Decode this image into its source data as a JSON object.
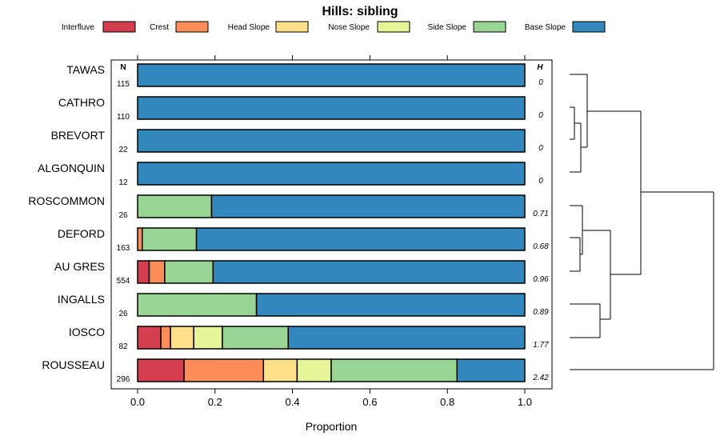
{
  "chart_data": {
    "type": "bar",
    "orientation": "horizontal",
    "stacked": true,
    "title": "Hills: sibling",
    "xlabel": "Proportion",
    "ylabel": "",
    "xlim": [
      0,
      1
    ],
    "xticks": [
      "0.0",
      "0.2",
      "0.4",
      "0.6",
      "0.8",
      "1.0"
    ],
    "n_header": "N",
    "h_header": "H",
    "categories": [
      "TAWAS",
      "CATHRO",
      "BREVORT",
      "ALGONQUIN",
      "ROSCOMMON",
      "DEFORD",
      "AU GRES",
      "INGALLS",
      "IOSCO",
      "ROUSSEAU"
    ],
    "n": [
      "115",
      "110",
      "22",
      "12",
      "26",
      "163",
      "554",
      "26",
      "82",
      "296"
    ],
    "h": [
      "0",
      "0",
      "0",
      "0",
      "0.71",
      "0.68",
      "0.96",
      "0.89",
      "1.77",
      "2.42"
    ],
    "series": [
      {
        "name": "Interfluve",
        "color": "#d53e4f",
        "values": [
          0,
          0,
          0,
          0,
          0,
          0,
          0.03,
          0,
          0.06,
          0.12
        ]
      },
      {
        "name": "Crest",
        "color": "#fc8d59",
        "values": [
          0,
          0,
          0,
          0,
          0,
          0.012,
          0.04,
          0,
          0.025,
          0.205
        ]
      },
      {
        "name": "Head Slope",
        "color": "#fee08b",
        "values": [
          0,
          0,
          0,
          0,
          0,
          0,
          0,
          0,
          0.06,
          0.087
        ]
      },
      {
        "name": "Nose Slope",
        "color": "#e6f598",
        "values": [
          0,
          0,
          0,
          0,
          0,
          0,
          0,
          0,
          0.074,
          0.088
        ]
      },
      {
        "name": "Side Slope",
        "color": "#99d594",
        "values": [
          0,
          0,
          0,
          0,
          0.191,
          0.14,
          0.125,
          0.307,
          0.17,
          0.325
        ]
      },
      {
        "name": "Base Slope",
        "color": "#3288bd",
        "values": [
          1,
          1,
          1,
          1,
          0.809,
          0.848,
          0.805,
          0.693,
          0.611,
          0.175
        ]
      }
    ],
    "legend_position": "top",
    "dendrogram": "right"
  }
}
